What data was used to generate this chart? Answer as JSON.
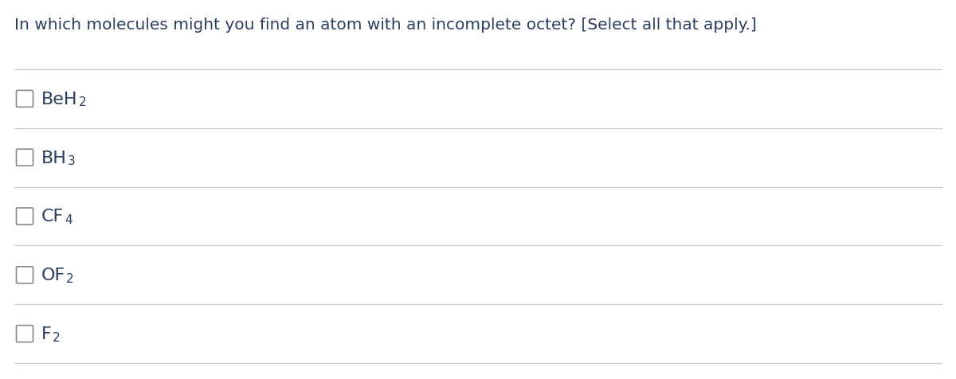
{
  "title": "In which molecules might you find an atom with an incomplete octet? [Select all that apply.]",
  "title_fontsize": 14.5,
  "title_color": "#2d3f5f",
  "background_color": "#ffffff",
  "divider_color": "#cccccc",
  "checkbox_color": "#888888",
  "options": [
    {
      "main": "BeH",
      "sub": "2"
    },
    {
      "main": "BH",
      "sub": "3"
    },
    {
      "main": "CF",
      "sub": "4"
    },
    {
      "main": "OF",
      "sub": "2"
    },
    {
      "main": "F",
      "sub": "2"
    }
  ],
  "option_fontsize": 16,
  "sub_fontsize": 11,
  "option_color": "#2d3f5f",
  "fig_width": 12.0,
  "fig_height": 4.77,
  "dpi": 100
}
